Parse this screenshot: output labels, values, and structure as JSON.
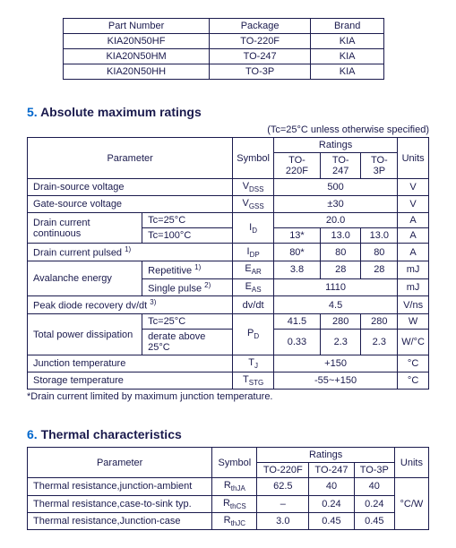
{
  "parts_table": {
    "headers": [
      "Part Number",
      "Package",
      "Brand"
    ],
    "rows": [
      [
        "KIA20N50HF",
        "TO-220F",
        "KIA"
      ],
      [
        "KIA20N50HM",
        "TO-247",
        "KIA"
      ],
      [
        "KIA20N50HH",
        "TO-3P",
        "KIA"
      ]
    ]
  },
  "section5": {
    "num": "5.",
    "title": "Absolute maximum ratings",
    "condition": "(Tc=25°C unless otherwise specified)",
    "headers": {
      "param": "Parameter",
      "symbol": "Symbol",
      "ratings": "Ratings",
      "units": "Units",
      "sub": [
        "TO-220F",
        "TO-247",
        "TO-3P"
      ]
    },
    "rows": {
      "r1": {
        "p": "Drain-source voltage",
        "s": "V",
        "ssub": "DSS",
        "v": "500",
        "u": "V"
      },
      "r2": {
        "p": "Gate-source voltage",
        "s": "V",
        "ssub": "GSS",
        "v": "±30",
        "u": "V"
      },
      "r3": {
        "p": "Drain current continuous",
        "c1": "Tc=25°C",
        "c2": "Tc=100°C",
        "s": "I",
        "ssub": "D",
        "v1": "20.0",
        "v2a": "13*",
        "v2b": "13.0",
        "v2c": "13.0",
        "u": "A"
      },
      "r4": {
        "p": "Drain current pulsed ",
        "sup": "1)",
        "s": "I",
        "ssub": "DP",
        "va": "80*",
        "vb": "80",
        "vc": "80",
        "u": "A"
      },
      "r5": {
        "p": "Avalanche energy",
        "c1": "Repetitive ",
        "c1sup": "1)",
        "c2": "Single pulse ",
        "c2sup": "2)",
        "s1": "E",
        "s1sub": "AR",
        "s2": "E",
        "s2sub": "AS",
        "v1a": "3.8",
        "v1b": "28",
        "v1c": "28",
        "v2": "1110",
        "u": "mJ"
      },
      "r6": {
        "p": "Peak diode recovery dv/dt ",
        "sup": "3)",
        "s": "dv/dt",
        "v": "4.5",
        "u": "V/ns"
      },
      "r7": {
        "p": "Total power dissipation",
        "c1": "Tc=25°C",
        "c2": "derate above 25°C",
        "s": "P",
        "ssub": "D",
        "v1a": "41.5",
        "v1b": "280",
        "v1c": "280",
        "v2a": "0.33",
        "v2b": "2.3",
        "v2c": "2.3",
        "u1": "W",
        "u2": "W/°C"
      },
      "r8": {
        "p": "Junction temperature",
        "s": "T",
        "ssub": "J",
        "v": "+150",
        "u": "°C"
      },
      "r9": {
        "p": "Storage temperature",
        "s": "T",
        "ssub": "STG",
        "v": "-55~+150",
        "u": "°C"
      }
    },
    "footnote": "*Drain current limited by maximum junction temperature."
  },
  "section6": {
    "num": "6.",
    "title": "Thermal characteristics",
    "headers": {
      "param": "Parameter",
      "symbol": "Symbol",
      "ratings": "Ratings",
      "units": "Units",
      "sub": [
        "TO-220F",
        "TO-247",
        "TO-3P"
      ]
    },
    "rows": {
      "r1": {
        "p": "Thermal resistance,junction-ambient",
        "s": "R",
        "ssub": "thJA",
        "va": "62.5",
        "vb": "40",
        "vc": "40"
      },
      "r2": {
        "p": "Thermal resistance,case-to-sink typ.",
        "s": "R",
        "ssub": "thCS",
        "va": "–",
        "vb": "0.24",
        "vc": "0.24"
      },
      "r3": {
        "p": "Thermal resistance,Junction-case",
        "s": "R",
        "ssub": "thJC",
        "va": "3.0",
        "vb": "0.45",
        "vc": "0.45"
      },
      "u": "°C/W"
    }
  }
}
